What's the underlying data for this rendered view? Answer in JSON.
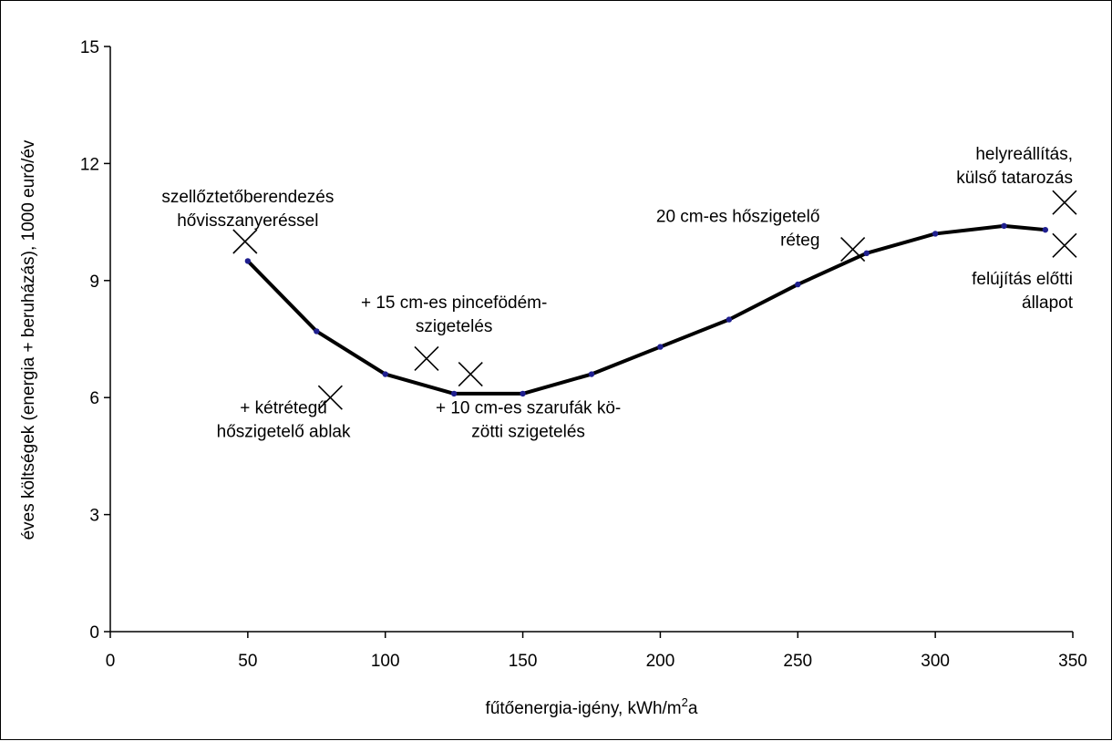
{
  "chart_data": {
    "type": "line",
    "xlabel": "fűtőenergia-igény, kWh/m",
    "xlabel_sup": "2",
    "xlabel_tail": "a",
    "ylabel": "éves költségek (energia + beruházás), 1000 euró/év",
    "xlim": [
      0,
      350
    ],
    "ylim": [
      0,
      15
    ],
    "xticks": [
      0,
      50,
      100,
      150,
      200,
      250,
      300,
      350
    ],
    "yticks": [
      0,
      3,
      6,
      9,
      12,
      15
    ],
    "grid": false,
    "series": [
      {
        "x": [
          50,
          75,
          100,
          125,
          150,
          175,
          200,
          225,
          250,
          275,
          300,
          325,
          340
        ],
        "y": [
          9.5,
          7.7,
          6.6,
          6.1,
          6.1,
          6.6,
          7.3,
          8.0,
          8.9,
          9.7,
          10.2,
          10.4,
          10.3
        ],
        "line_color": "#000000",
        "marker_color": "#1f1f8f"
      }
    ],
    "markers": [
      {
        "x": 49,
        "y": 10.0
      },
      {
        "x": 80,
        "y": 6.0
      },
      {
        "x": 115,
        "y": 7.0
      },
      {
        "x": 131,
        "y": 6.6
      },
      {
        "x": 270,
        "y": 9.8
      },
      {
        "x": 347,
        "y": 11.0
      },
      {
        "x": 347,
        "y": 9.9
      }
    ],
    "annotations": [
      {
        "lines": [
          "szellőztetőberendezés",
          "hővisszanyeréssel"
        ],
        "x": 50,
        "y": 11.0,
        "anchor": "middle"
      },
      {
        "lines": [
          "+ kétrétegű",
          "hőszigetelő ablak"
        ],
        "x": 63,
        "y": 5.6,
        "anchor": "middle"
      },
      {
        "lines": [
          "+ 15 cm-es pincefödém-",
          "szigetelés"
        ],
        "x": 125,
        "y": 8.3,
        "anchor": "middle"
      },
      {
        "lines": [
          "+ 10 cm-es szarufák kö-",
          "zötti szigetelés"
        ],
        "x": 152,
        "y": 5.6,
        "anchor": "middle"
      },
      {
        "lines": [
          "20 cm-es hőszigetelő",
          "réteg"
        ],
        "x": 258,
        "y": 10.5,
        "anchor": "end"
      },
      {
        "lines": [
          "helyreállítás,",
          "külső tatarozás"
        ],
        "x": 350,
        "y": 12.1,
        "anchor": "end"
      },
      {
        "lines": [
          "felújítás előtti",
          "állapot"
        ],
        "x": 350,
        "y": 8.9,
        "anchor": "end"
      }
    ]
  }
}
